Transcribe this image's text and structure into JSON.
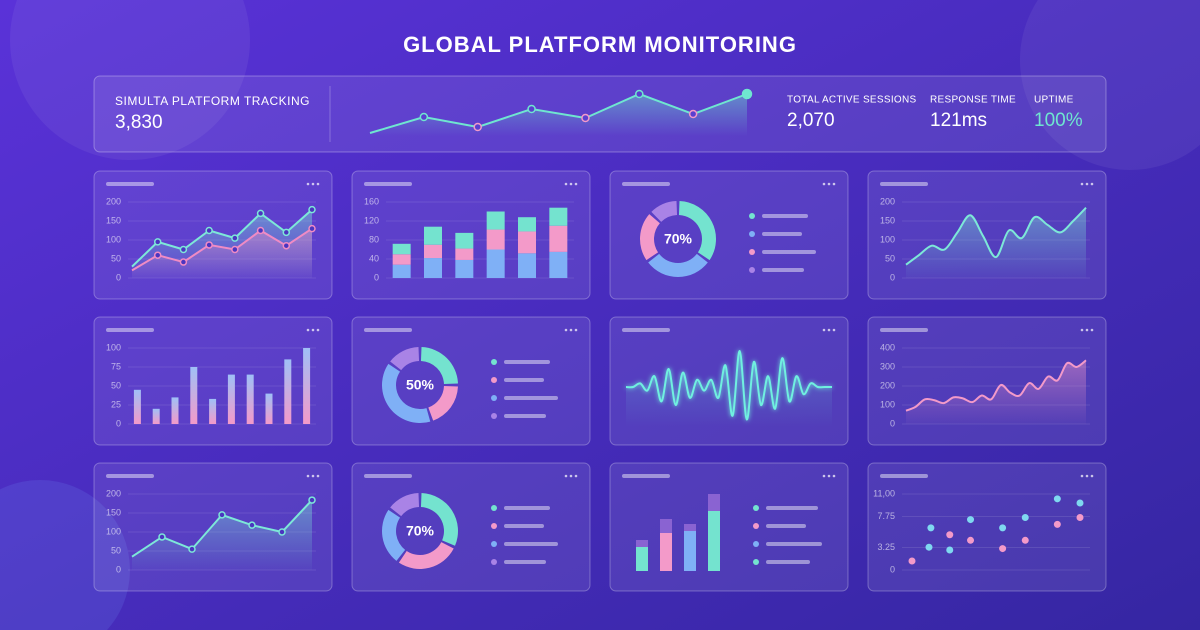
{
  "title": "GLOBAL PLATFORM MONITORING",
  "header": {
    "label": "SIMULTA PLATFORM TRACKING",
    "value": "3,830",
    "color": "#6fe6d0",
    "sparkline": [
      7,
      23,
      13,
      31,
      22,
      46,
      26,
      46
    ],
    "stats": [
      {
        "label": "TOTAL ACTIVE SESSIONS",
        "value": "2,070"
      },
      {
        "label": "RESPONSE TIME",
        "value": "121ms"
      },
      {
        "label": "UPTIME",
        "value": "100%"
      }
    ]
  },
  "chart_data": [
    {
      "type": "line",
      "area": true,
      "markers": true,
      "ylim": [
        0,
        200
      ],
      "yticks": [
        0,
        50,
        100,
        150,
        200
      ],
      "series": [
        {
          "color": "#7de8d8",
          "values": [
            30,
            95,
            75,
            125,
            105,
            170,
            120,
            180
          ]
        },
        {
          "color": "#f08bc4",
          "values": [
            20,
            60,
            42,
            87,
            75,
            125,
            85,
            130
          ]
        }
      ]
    },
    {
      "type": "stacked_bar",
      "ylim": [
        0,
        160
      ],
      "yticks": [
        0,
        40,
        80,
        120,
        160
      ],
      "series": [
        {
          "color": "#7fb0f6",
          "values": [
            28,
            42,
            38,
            60,
            52,
            55
          ]
        },
        {
          "color": "#f39ac9",
          "values": [
            22,
            28,
            24,
            42,
            46,
            55
          ]
        },
        {
          "color": "#74e3cf",
          "values": [
            22,
            38,
            33,
            38,
            30,
            38
          ]
        }
      ]
    },
    {
      "type": "donut",
      "center_label": "70%",
      "colors": [
        "#74e3cf",
        "#7fb0f6",
        "#f39ac9",
        "#a983e6"
      ],
      "values": [
        35,
        30,
        22,
        13
      ]
    },
    {
      "type": "line",
      "area": true,
      "smooth": true,
      "ylim": [
        0,
        200
      ],
      "yticks": [
        0,
        50,
        100,
        150,
        200
      ],
      "series": [
        {
          "color": "#7de8d8",
          "values": [
            35,
            60,
            85,
            75,
            120,
            165,
            110,
            55,
            125,
            105,
            160,
            140,
            120,
            150,
            185
          ]
        }
      ]
    },
    {
      "type": "bar",
      "ylim": [
        0,
        100
      ],
      "yticks": [
        0,
        25,
        50,
        75,
        100
      ],
      "colors": [
        "#9fc0f7",
        "#f39ac9"
      ],
      "values": [
        45,
        20,
        35,
        75,
        33,
        65,
        65,
        40,
        85,
        100
      ]
    },
    {
      "type": "donut",
      "center_label": "50%",
      "colors": [
        "#74e3cf",
        "#f39ac9",
        "#7fb0f6",
        "#a983e6"
      ],
      "values": [
        25,
        20,
        40,
        15
      ]
    },
    {
      "type": "wave",
      "color": "#6ff0e0",
      "values": [
        0,
        0,
        0.1,
        -0.1,
        0.3,
        -0.4,
        0.5,
        -0.5,
        0.4,
        -0.3,
        0.2,
        -0.1,
        0.2,
        -0.3,
        0.6,
        -0.8,
        1.0,
        -0.9,
        0.7,
        -0.5,
        0.3,
        -0.6,
        0.8,
        -0.4,
        0.3,
        -0.2,
        0.1,
        0,
        0,
        0
      ]
    },
    {
      "type": "line",
      "area": true,
      "smooth": true,
      "ylim": [
        0,
        400
      ],
      "yticks": [
        0,
        100,
        200,
        300,
        400
      ],
      "series": [
        {
          "color": "#f39ac9",
          "values": [
            70,
            90,
            130,
            125,
            110,
            140,
            135,
            115,
            150,
            130,
            205,
            165,
            150,
            215,
            185,
            250,
            230,
            320,
            300,
            335
          ]
        }
      ]
    },
    {
      "type": "line",
      "area": true,
      "markers": true,
      "ylim": [
        0,
        200
      ],
      "yticks": [
        0,
        50,
        100,
        150,
        200
      ],
      "series": [
        {
          "color": "#7de8d8",
          "values": [
            35,
            87,
            55,
            145,
            118,
            100,
            184
          ]
        }
      ]
    },
    {
      "type": "donut",
      "center_label": "70%",
      "colors": [
        "#74e3cf",
        "#f39ac9",
        "#7fb0f6",
        "#a983e6"
      ],
      "values": [
        32,
        28,
        25,
        15
      ]
    },
    {
      "type": "capped_bar",
      "colors": [
        "#74e3cf",
        "#f39ac9",
        "#7fb0f6",
        "#74e3cf"
      ],
      "cap_color": "#8a63d2",
      "values": [
        24,
        38,
        40,
        60
      ],
      "caps": [
        7,
        14,
        7,
        17
      ]
    },
    {
      "type": "scatter",
      "ylim": [
        0,
        11
      ],
      "yticks": [
        {
          "value": 11,
          "label": "11,00"
        },
        7.75,
        3.25,
        0
      ],
      "series": [
        {
          "color": "#7fd8f0",
          "x": [
            1.5,
            3.6,
            5.3,
            6.5,
            8.2,
            9.4,
            1.4,
            2.5
          ],
          "y": [
            6.1,
            7.3,
            6.1,
            7.6,
            10.3,
            9.7,
            3.3,
            2.9
          ]
        },
        {
          "color": "#f39ac9",
          "x": [
            0.5,
            2.5,
            3.6,
            5.3,
            6.5,
            8.2,
            9.4
          ],
          "y": [
            1.3,
            5.1,
            4.3,
            3.1,
            4.3,
            6.6,
            7.6
          ]
        }
      ]
    }
  ]
}
